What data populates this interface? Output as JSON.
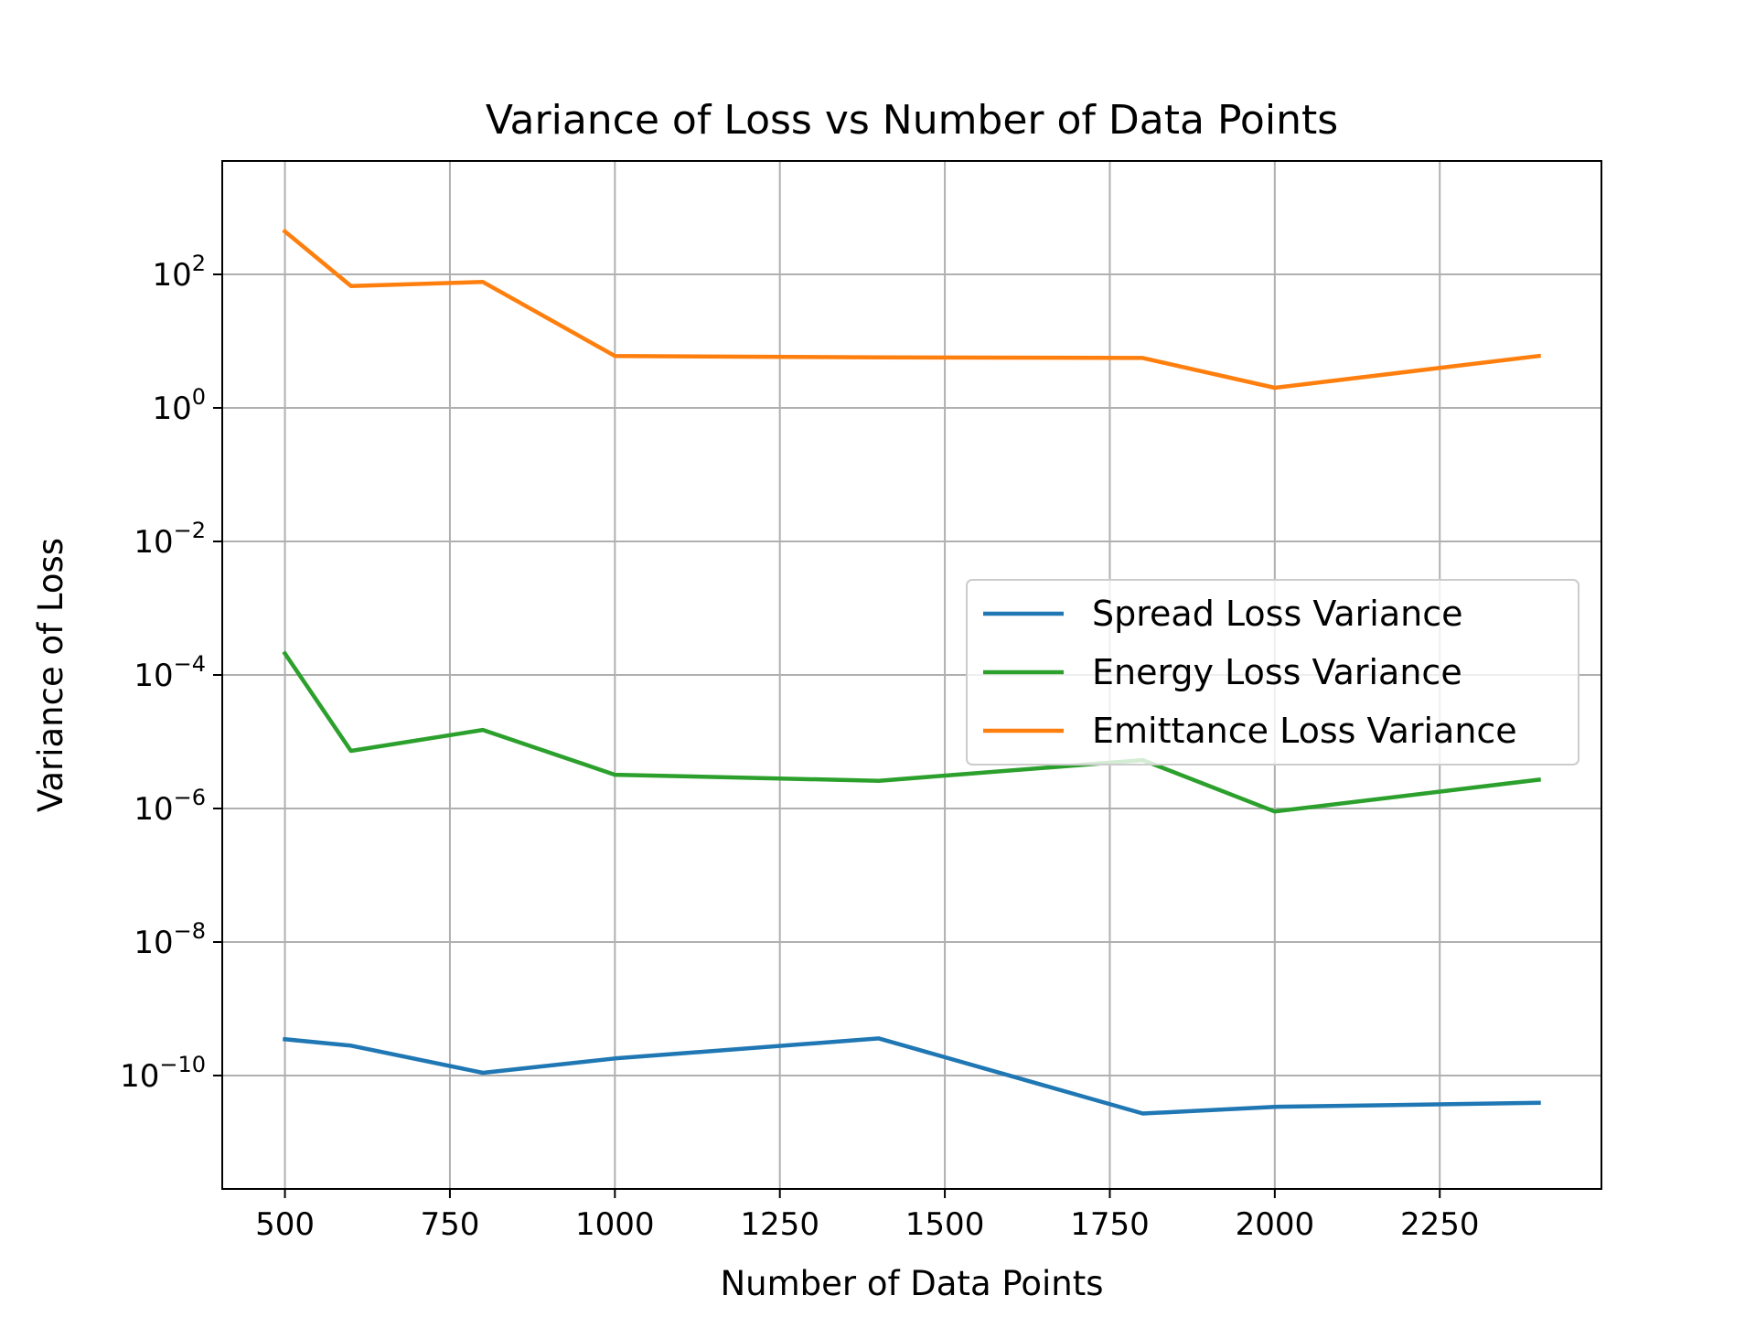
{
  "chart_data": {
    "type": "line",
    "title": "Variance of Loss vs Number of Data Points",
    "xlabel": "Number of Data Points",
    "ylabel": "Variance of Loss",
    "x_scale": "linear",
    "y_scale": "log",
    "xlim": [
      405,
      2495
    ],
    "ylim": [
      2e-12,
      5000
    ],
    "x_ticks": [
      500,
      750,
      1000,
      1250,
      1500,
      1750,
      2000,
      2250
    ],
    "y_ticks": [
      {
        "base": "10",
        "exp": "−10",
        "value": 1e-10
      },
      {
        "base": "10",
        "exp": "−8",
        "value": 1e-08
      },
      {
        "base": "10",
        "exp": "−6",
        "value": 1e-06
      },
      {
        "base": "10",
        "exp": "−4",
        "value": 0.0001
      },
      {
        "base": "10",
        "exp": "−2",
        "value": 0.01
      },
      {
        "base": "10",
        "exp": "0",
        "value": 1
      },
      {
        "base": "10",
        "exp": "2",
        "value": 100
      }
    ],
    "grid": true,
    "legend_position": "center-right",
    "x": [
      500,
      600,
      800,
      1000,
      1400,
      1800,
      2000,
      2400
    ],
    "series": [
      {
        "name": "Spread Loss Variance",
        "color": "#1f77b4",
        "values": [
          3.5e-10,
          2.8e-10,
          1.1e-10,
          1.8e-10,
          3.6e-10,
          2.7e-11,
          3.4e-11,
          3.9e-11
        ]
      },
      {
        "name": "Energy Loss Variance",
        "color": "#2ca02c",
        "values": [
          0.00021,
          7.3e-06,
          1.5e-05,
          3.2e-06,
          2.6e-06,
          5.3e-06,
          9e-07,
          2.7e-06
        ]
      },
      {
        "name": "Emittance Loss Variance",
        "color": "#ff7f0e",
        "values": [
          440,
          67,
          77,
          6.0,
          5.7,
          5.6,
          2.0,
          6.0
        ]
      }
    ]
  }
}
